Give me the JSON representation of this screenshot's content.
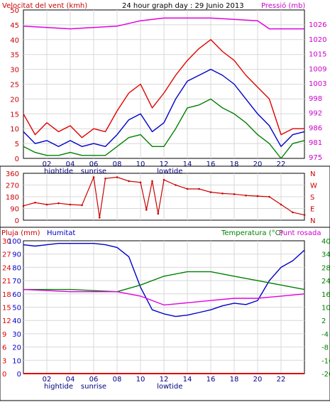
{
  "chart_data": [
    {
      "type": "line",
      "title": "24 hour graph day : 29 Junio 2013",
      "left_axis_label": "Velocitat del vent (kmh)",
      "right_axis_label": "Pressió (mb)",
      "left_ticks": [
        "0",
        "5",
        "10",
        "15",
        "20",
        "25",
        "30",
        "35",
        "40",
        "45",
        "50"
      ],
      "right_ticks": [
        "975",
        "981",
        "986",
        "992",
        "998",
        "1003",
        "1009",
        "1015",
        "1020",
        "1026"
      ],
      "x_ticks": [
        "02",
        "04",
        "06",
        "08",
        "10",
        "12",
        "14",
        "16",
        "18",
        "20",
        "22"
      ],
      "x_annotations": [
        {
          "hour": 3,
          "text": "hightide"
        },
        {
          "hour": 6,
          "text": "sunrise"
        },
        {
          "hour": 12.5,
          "text": "lowtide"
        }
      ],
      "ylim": [
        0,
        50
      ],
      "right_ylim": [
        975,
        1030
      ],
      "xlim": [
        0,
        24
      ],
      "colors": {
        "gust": "#e00000",
        "wind": "#0000c8",
        "min_wind": "#008000",
        "pressure": "#e000e0",
        "axis_left": "#cc0000",
        "axis_right": "#cc00cc"
      },
      "series": [
        {
          "key": "gust",
          "points": [
            [
              0,
              15
            ],
            [
              1,
              8
            ],
            [
              2,
              12
            ],
            [
              3,
              9
            ],
            [
              4,
              11
            ],
            [
              5,
              7
            ],
            [
              6,
              10
            ],
            [
              7,
              9
            ],
            [
              8,
              16
            ],
            [
              9,
              22
            ],
            [
              10,
              25
            ],
            [
              11,
              17
            ],
            [
              12,
              22
            ],
            [
              13,
              28
            ],
            [
              14,
              33
            ],
            [
              15,
              37
            ],
            [
              16,
              40
            ],
            [
              17,
              36
            ],
            [
              18,
              33
            ],
            [
              19,
              28
            ],
            [
              20,
              24
            ],
            [
              21,
              20
            ],
            [
              22,
              8
            ],
            [
              23,
              10
            ],
            [
              24,
              10
            ]
          ]
        },
        {
          "key": "wind",
          "points": [
            [
              0,
              9
            ],
            [
              1,
              5
            ],
            [
              2,
              6
            ],
            [
              3,
              4
            ],
            [
              4,
              6
            ],
            [
              5,
              4
            ],
            [
              6,
              5
            ],
            [
              7,
              4
            ],
            [
              8,
              8
            ],
            [
              9,
              13
            ],
            [
              10,
              15
            ],
            [
              11,
              9
            ],
            [
              12,
              12
            ],
            [
              13,
              20
            ],
            [
              14,
              26
            ],
            [
              15,
              28
            ],
            [
              16,
              30
            ],
            [
              17,
              28
            ],
            [
              18,
              25
            ],
            [
              19,
              20
            ],
            [
              20,
              15
            ],
            [
              21,
              11
            ],
            [
              22,
              4
            ],
            [
              23,
              8
            ],
            [
              24,
              9
            ]
          ]
        },
        {
          "key": "min_wind",
          "points": [
            [
              0,
              4
            ],
            [
              1,
              2
            ],
            [
              2,
              1
            ],
            [
              3,
              1
            ],
            [
              4,
              2
            ],
            [
              5,
              1
            ],
            [
              6,
              1
            ],
            [
              7,
              1
            ],
            [
              8,
              4
            ],
            [
              9,
              7
            ],
            [
              10,
              8
            ],
            [
              11,
              4
            ],
            [
              12,
              4
            ],
            [
              13,
              10
            ],
            [
              14,
              17
            ],
            [
              15,
              18
            ],
            [
              16,
              20
            ],
            [
              17,
              17
            ],
            [
              18,
              15
            ],
            [
              19,
              12
            ],
            [
              20,
              8
            ],
            [
              21,
              5
            ],
            [
              22,
              0
            ],
            [
              23,
              5
            ],
            [
              24,
              6
            ]
          ]
        },
        {
          "key": "pressure",
          "points": [
            [
              0,
              1024
            ],
            [
              4,
              1023
            ],
            [
              8,
              1024
            ],
            [
              10,
              1026
            ],
            [
              12,
              1027
            ],
            [
              16,
              1027
            ],
            [
              20,
              1026
            ],
            [
              21,
              1023
            ],
            [
              24,
              1023
            ]
          ]
        }
      ]
    },
    {
      "type": "scatter",
      "right_labels": [
        "N",
        "W",
        "S",
        "E",
        "N"
      ],
      "left_ticks": [
        "360",
        "270",
        "180",
        "90",
        "0"
      ],
      "ylim": [
        0,
        360
      ],
      "xlim": [
        0,
        24
      ],
      "color": "#cc0000",
      "points": [
        [
          0,
          110
        ],
        [
          1,
          135
        ],
        [
          2,
          120
        ],
        [
          3,
          130
        ],
        [
          4,
          120
        ],
        [
          5,
          115
        ],
        [
          6,
          330
        ],
        [
          6.5,
          20
        ],
        [
          7,
          320
        ],
        [
          8,
          330
        ],
        [
          9,
          300
        ],
        [
          10,
          290
        ],
        [
          10.5,
          80
        ],
        [
          11,
          300
        ],
        [
          11.5,
          50
        ],
        [
          12,
          310
        ],
        [
          13,
          270
        ],
        [
          14,
          240
        ],
        [
          15,
          240
        ],
        [
          16,
          215
        ],
        [
          17,
          205
        ],
        [
          18,
          200
        ],
        [
          19,
          190
        ],
        [
          20,
          185
        ],
        [
          21,
          180
        ],
        [
          22,
          120
        ],
        [
          23,
          60
        ],
        [
          24,
          40
        ]
      ]
    },
    {
      "type": "line",
      "left_axis_labels": [
        "Pluja (mm)",
        "Humitat"
      ],
      "right_axis_labels": [
        "Temperatura (°C)",
        "Punt rosada"
      ],
      "rain_ticks": [
        "0",
        "3",
        "6",
        "9",
        "12",
        "15",
        "18",
        "21",
        "24",
        "27",
        "30"
      ],
      "humidity_ticks": [
        "0",
        "10",
        "20",
        "30",
        "40",
        "50",
        "60",
        "70",
        "80",
        "90",
        "100"
      ],
      "temp_ticks": [
        "-20",
        "-16",
        "-8",
        "-4",
        "2",
        "10",
        "16",
        "24",
        "28",
        "34",
        "40"
      ],
      "ylim_humidity": [
        0,
        100
      ],
      "ylim_temp": [
        -20,
        40
      ],
      "xlim": [
        0,
        24
      ],
      "colors": {
        "rain": "#e00000",
        "humidity": "#0000c8",
        "temperature": "#008000",
        "dew_point": "#e000e0"
      },
      "series": [
        {
          "key": "humidity",
          "points": [
            [
              0,
              97
            ],
            [
              1,
              96
            ],
            [
              2,
              97
            ],
            [
              3,
              98
            ],
            [
              4,
              98
            ],
            [
              5,
              98
            ],
            [
              6,
              98
            ],
            [
              7,
              97
            ],
            [
              8,
              95
            ],
            [
              9,
              88
            ],
            [
              10,
              65
            ],
            [
              11,
              48
            ],
            [
              12,
              45
            ],
            [
              13,
              43
            ],
            [
              14,
              44
            ],
            [
              15,
              46
            ],
            [
              16,
              48
            ],
            [
              17,
              51
            ],
            [
              18,
              53
            ],
            [
              19,
              52
            ],
            [
              20,
              55
            ],
            [
              21,
              70
            ],
            [
              22,
              80
            ],
            [
              23,
              85
            ],
            [
              24,
              93
            ]
          ]
        },
        {
          "key": "temperature",
          "points": [
            [
              0,
              18
            ],
            [
              4,
              18
            ],
            [
              8,
              17
            ],
            [
              10,
              20
            ],
            [
              12,
              24
            ],
            [
              14,
              26
            ],
            [
              16,
              26
            ],
            [
              18,
              24
            ],
            [
              20,
              22
            ],
            [
              22,
              20
            ],
            [
              24,
              18
            ]
          ]
        },
        {
          "key": "dew_point",
          "points": [
            [
              0,
              18
            ],
            [
              4,
              17
            ],
            [
              8,
              17
            ],
            [
              10,
              15
            ],
            [
              12,
              11
            ],
            [
              14,
              12
            ],
            [
              16,
              13
            ],
            [
              18,
              14
            ],
            [
              20,
              14
            ],
            [
              22,
              15
            ],
            [
              24,
              16
            ]
          ]
        },
        {
          "key": "rain",
          "points": [
            [
              0,
              0
            ],
            [
              24,
              0
            ]
          ]
        }
      ]
    }
  ]
}
